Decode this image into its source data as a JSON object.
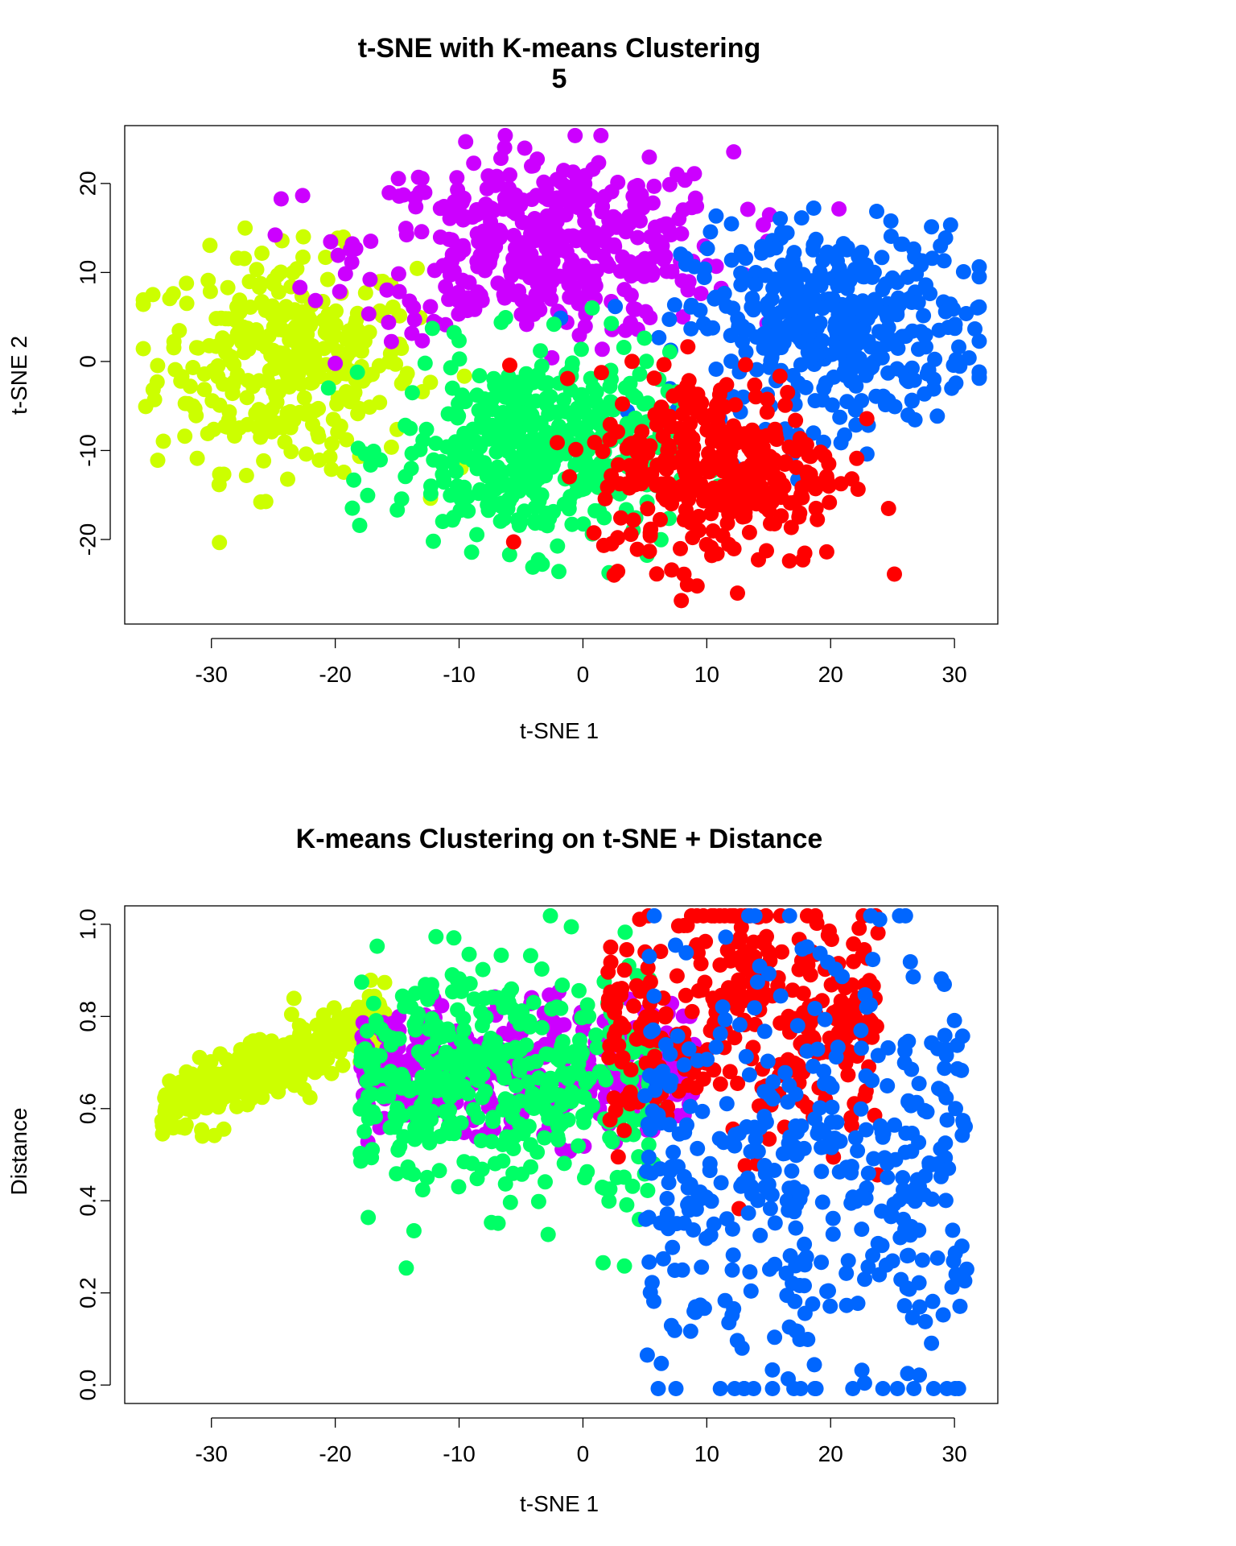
{
  "chart_data": [
    {
      "type": "scatter",
      "title": "t-SNE with K-means Clustering",
      "subtitle": "5",
      "xlabel": "t-SNE 1",
      "ylabel": "t-SNE 2",
      "xlim": [
        -37,
        33.5
      ],
      "ylim": [
        -29.5,
        26.5
      ],
      "xticks": [
        -30,
        -20,
        -10,
        0,
        10,
        20,
        30
      ],
      "yticks": [
        -20,
        -10,
        0,
        10,
        20
      ],
      "grid": false,
      "legend": "none",
      "clusters": [
        {
          "color": "#CCFF00",
          "center": [
            -24,
            0
          ],
          "spread": [
            5.2,
            6.0
          ],
          "count": 330
        },
        {
          "color": "#CC00FF",
          "center": [
            -3,
            13
          ],
          "spread": [
            7.5,
            5.2
          ],
          "count": 420
        },
        {
          "color": "#0066FF",
          "center": [
            20,
            4
          ],
          "spread": [
            5.8,
            5.5
          ],
          "count": 420
        },
        {
          "color": "#00FF66",
          "center": [
            -4,
            -10
          ],
          "spread": [
            5.5,
            5.5
          ],
          "count": 420
        },
        {
          "color": "#FF0000",
          "center": [
            11,
            -12
          ],
          "spread": [
            5.0,
            5.5
          ],
          "count": 330
        }
      ]
    },
    {
      "type": "scatter",
      "title": "K-means Clustering on t-SNE + Distance",
      "xlabel": "t-SNE 1",
      "ylabel": "Distance",
      "xlim": [
        -37,
        33.5
      ],
      "ylim": [
        -0.04,
        1.04
      ],
      "xticks": [
        -30,
        -20,
        -10,
        0,
        10,
        20,
        30
      ],
      "yticks": [
        0.0,
        0.2,
        0.4,
        0.6,
        0.8,
        1.0
      ],
      "ytick_labels": [
        "0.0",
        "0.2",
        "0.4",
        "0.6",
        "0.8",
        "1.0"
      ],
      "grid": false,
      "legend": "none",
      "clusters": [
        {
          "color": "#CCFF00",
          "x_range": [
            -34,
            -16
          ],
          "y_at_left": 0.59,
          "y_at_right": 0.8,
          "count": 330
        },
        {
          "color": "#CC00FF",
          "x_range": [
            -18,
            9
          ],
          "y_center": 0.68,
          "y_spread": 0.07,
          "count": 420
        },
        {
          "color": "#00FF66",
          "x_range": [
            -18,
            6
          ],
          "y_center": 0.66,
          "y_spread": 0.13,
          "count": 420
        },
        {
          "color": "#FF0000",
          "x_range": [
            2,
            24
          ],
          "y_center": 0.8,
          "y_spread": 0.15,
          "count": 330
        },
        {
          "color": "#0066FF",
          "x_range": [
            5,
            31
          ],
          "y_center": 0.45,
          "y_spread": 0.25,
          "count": 420
        }
      ]
    }
  ]
}
